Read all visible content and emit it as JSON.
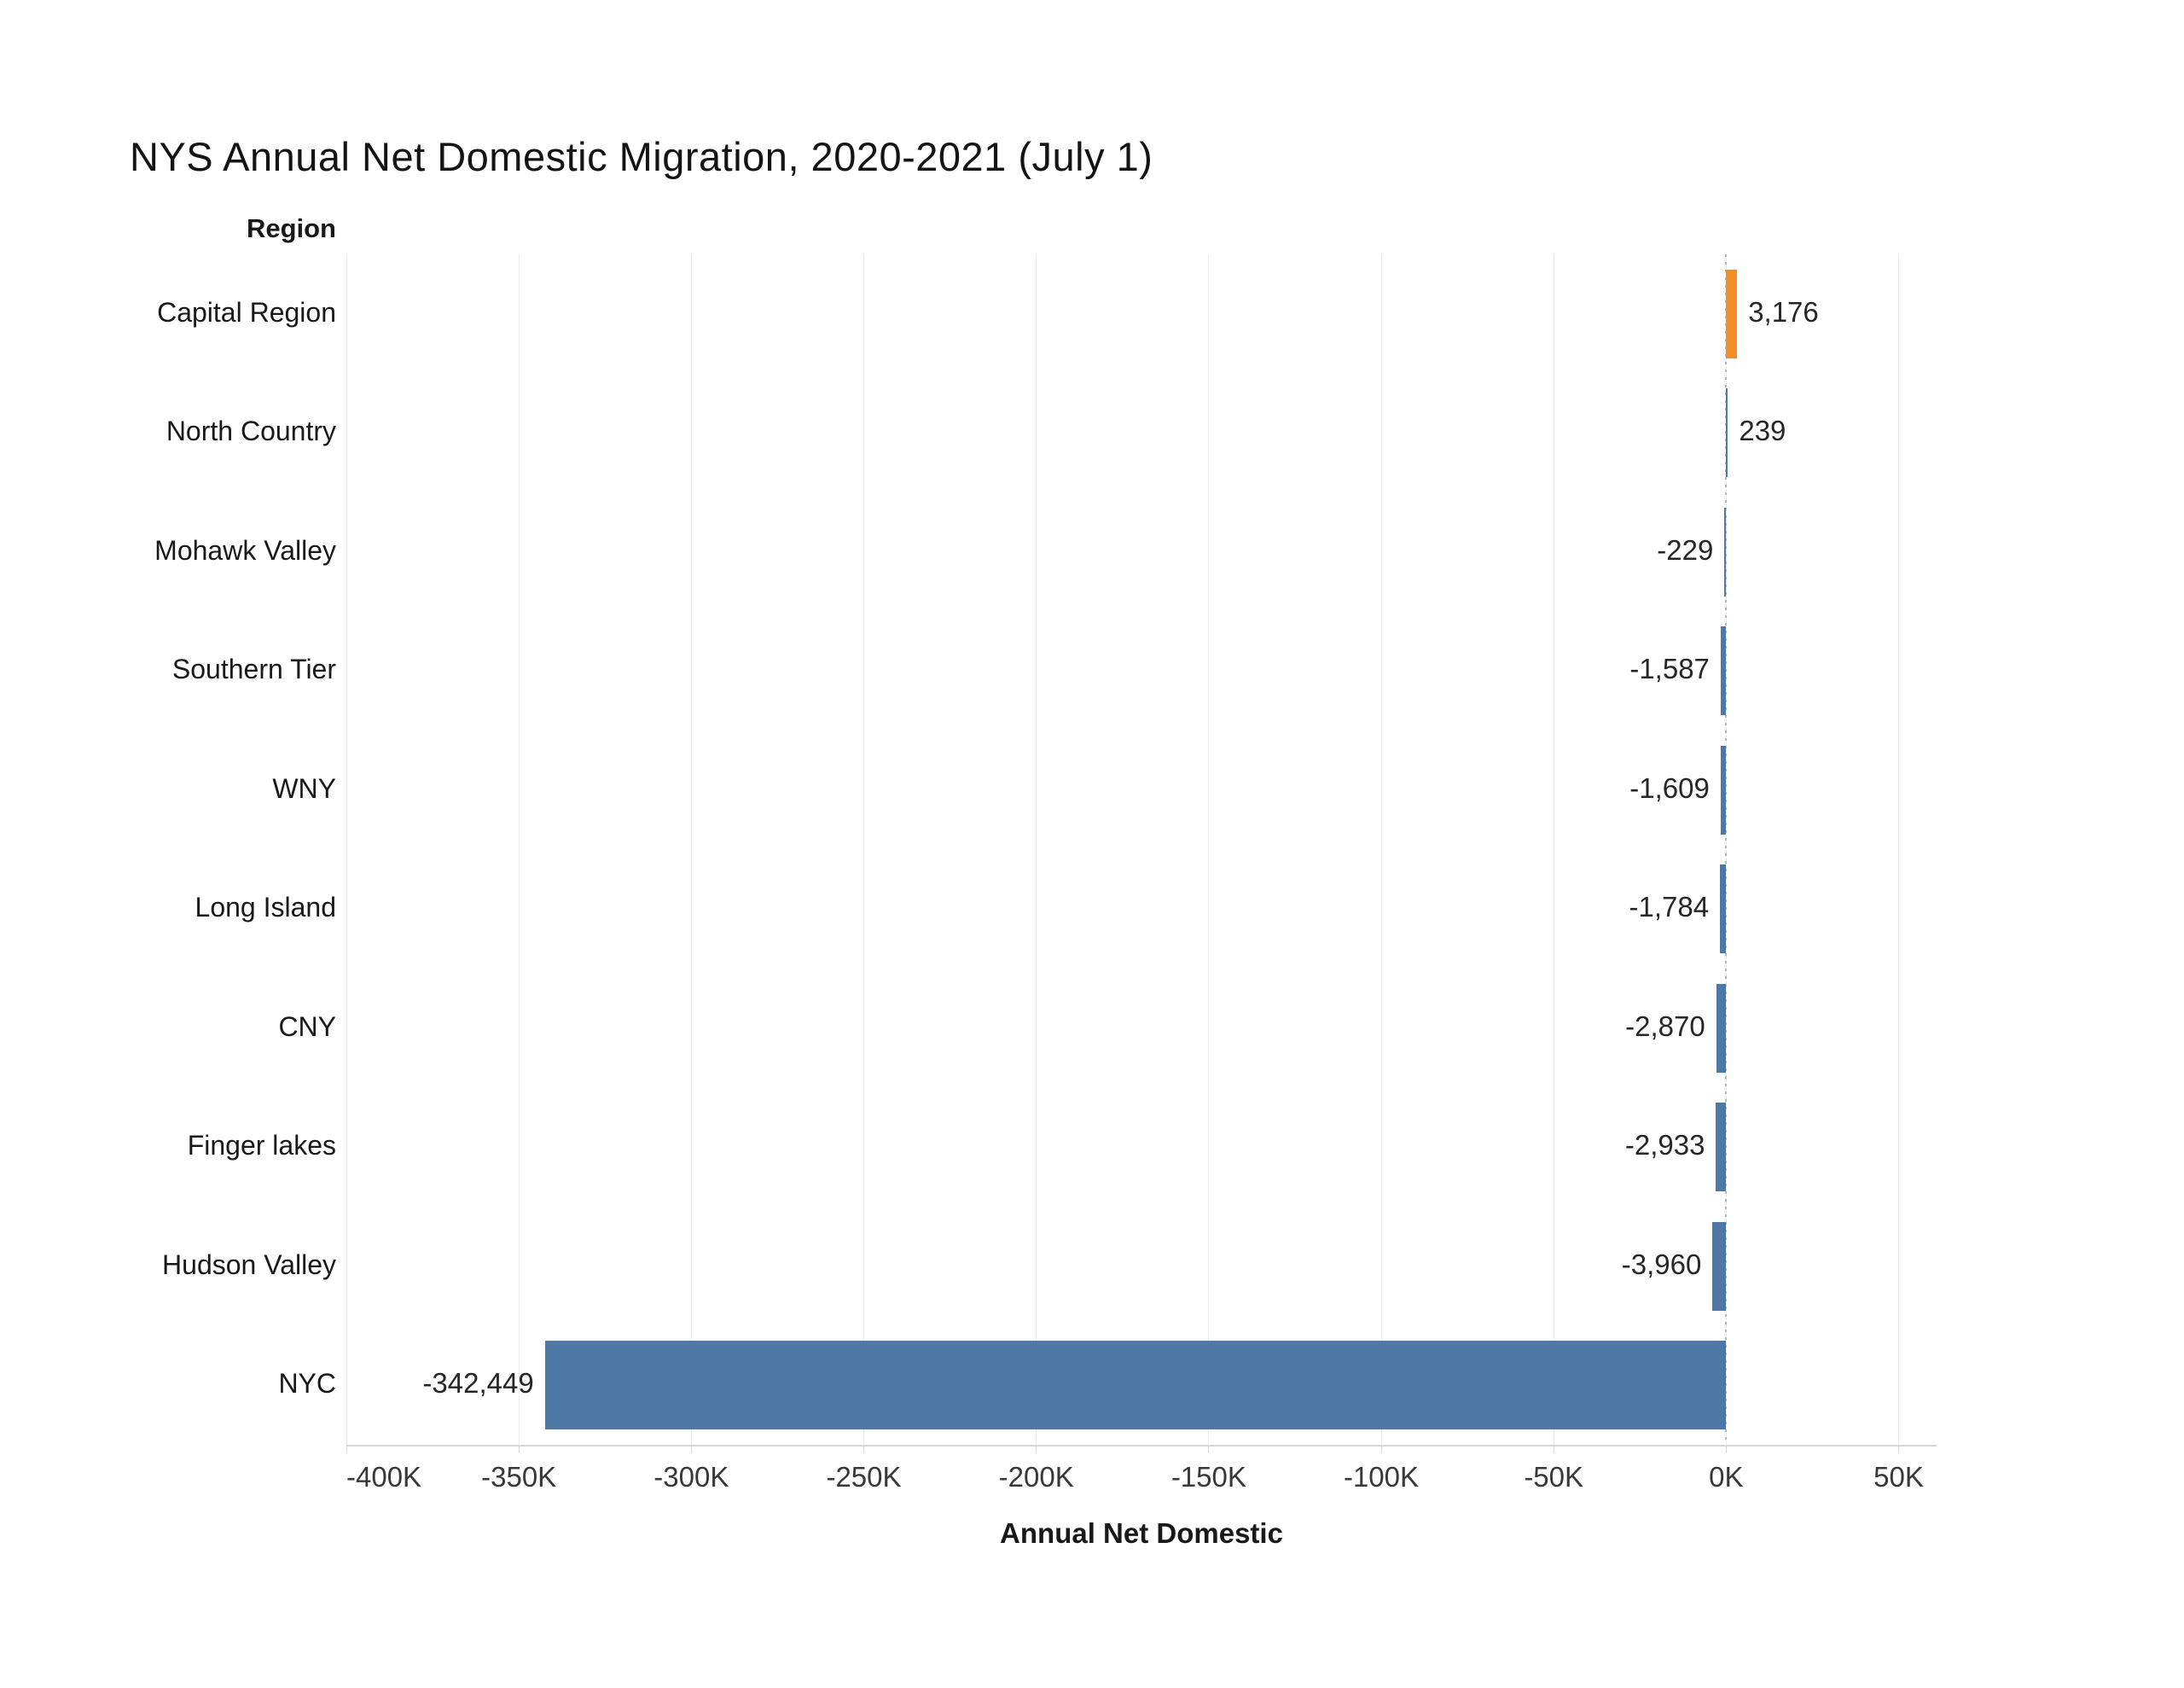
{
  "chart_data": {
    "type": "bar",
    "orientation": "horizontal",
    "title": "NYS Annual Net Domestic Migration, 2020-2021 (July 1)",
    "xlabel": "Annual Net Domestic",
    "ylabel": "Region",
    "xlim": [
      -400000,
      61000
    ],
    "grid": true,
    "x_ticks": [
      -400000,
      -350000,
      -300000,
      -250000,
      -200000,
      -150000,
      -100000,
      -50000,
      0,
      50000
    ],
    "x_tick_labels": [
      "-400K",
      "-350K",
      "-300K",
      "-250K",
      "-200K",
      "-150K",
      "-100K",
      "-50K",
      "0K",
      "50K"
    ],
    "categories": [
      "Capital Region",
      "North Country",
      "Mohawk Valley",
      "Southern Tier",
      "WNY",
      "Long Island",
      "CNY",
      "Finger lakes",
      "Hudson Valley",
      "NYC"
    ],
    "values": [
      3176,
      239,
      -229,
      -1587,
      -1609,
      -1784,
      -2870,
      -2933,
      -3960,
      -342449
    ],
    "series": [
      {
        "region": "Capital Region",
        "value": 3176,
        "label": "3,176",
        "color": "#f28e2b"
      },
      {
        "region": "North Country",
        "value": 239,
        "label": "239",
        "color": "#4e79a7"
      },
      {
        "region": "Mohawk Valley",
        "value": -229,
        "label": "-229",
        "color": "#4e79a7"
      },
      {
        "region": "Southern Tier",
        "value": -1587,
        "label": "-1,587",
        "color": "#4e79a7"
      },
      {
        "region": "WNY",
        "value": -1609,
        "label": "-1,609",
        "color": "#4e79a7"
      },
      {
        "region": "Long Island",
        "value": -1784,
        "label": "-1,784",
        "color": "#4e79a7"
      },
      {
        "region": "CNY",
        "value": -2870,
        "label": "-2,870",
        "color": "#4e79a7"
      },
      {
        "region": "Finger lakes",
        "value": -2933,
        "label": "-2,933",
        "color": "#4e79a7"
      },
      {
        "region": "Hudson Valley",
        "value": -3960,
        "label": "-3,960",
        "color": "#4e79a7"
      },
      {
        "region": "NYC",
        "value": -342449,
        "label": "-342,449",
        "color": "#4e79a7"
      }
    ],
    "colors": {
      "bar_default": "#4e79a7",
      "bar_highlight": "#f28e2b",
      "gridline": "#ececec",
      "axis_line": "#d7d7d7",
      "zero_line": "#b5b5b5"
    },
    "legend": null
  }
}
